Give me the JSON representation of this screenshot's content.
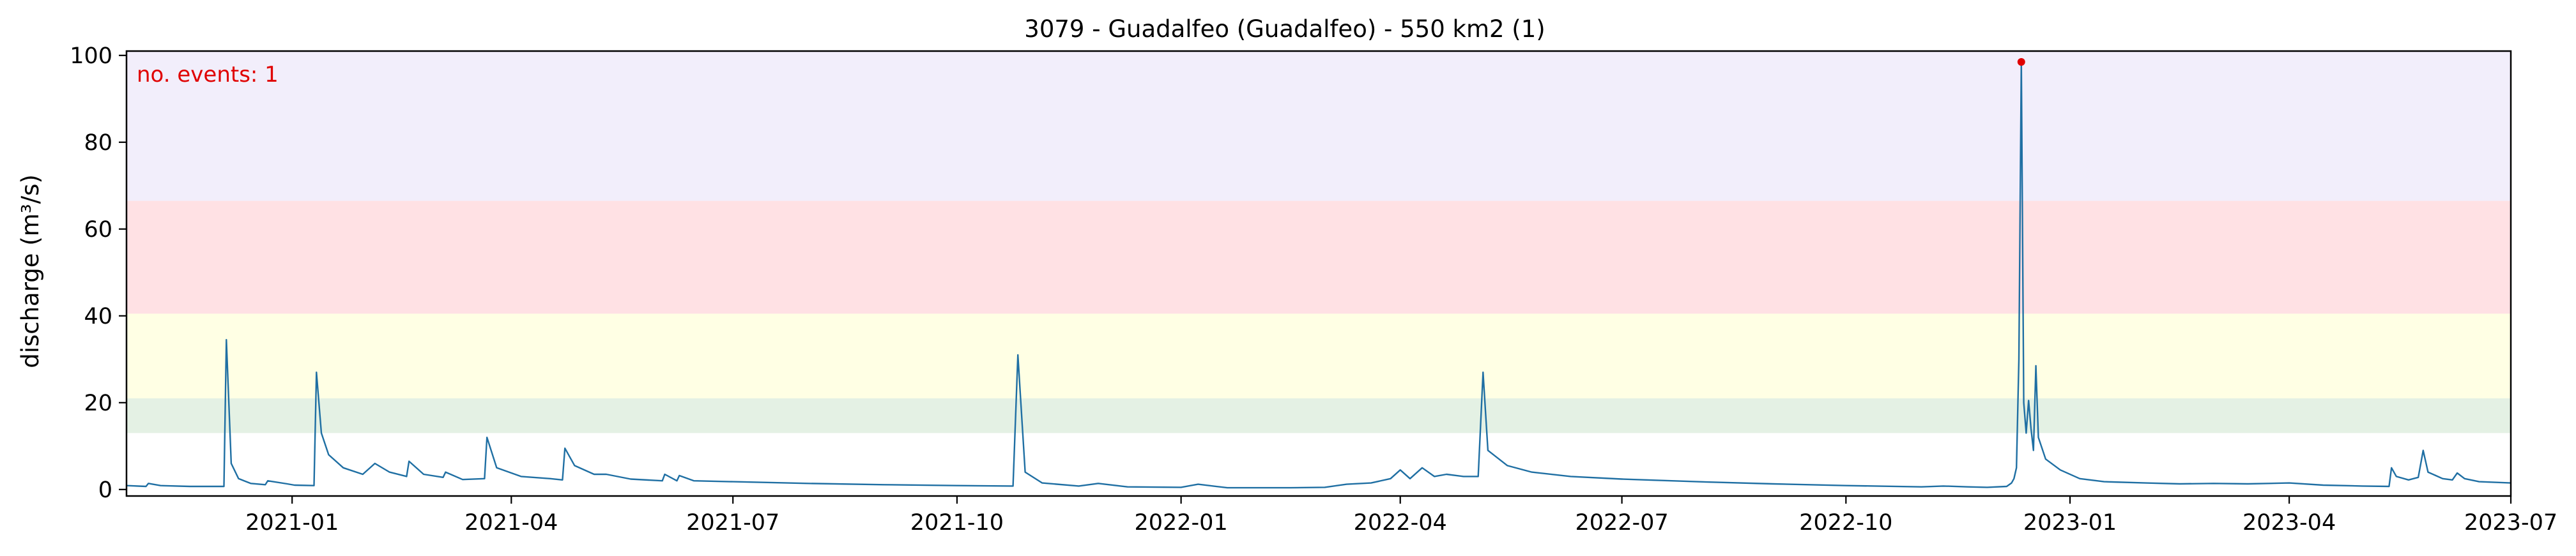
{
  "chart_data": {
    "type": "line",
    "title": "3079 - Guadalfeo (Guadalfeo) - 550 km2 (1)",
    "xlabel": "",
    "ylabel": "discharge (m³/s)",
    "xlim": [
      "2020-10-25",
      "2023-07-01"
    ],
    "ylim": [
      -1.5,
      101
    ],
    "x_ticks": [
      {
        "date": "2021-01-01",
        "label": "2021-01"
      },
      {
        "date": "2021-04-01",
        "label": "2021-04"
      },
      {
        "date": "2021-07-01",
        "label": "2021-07"
      },
      {
        "date": "2021-10-01",
        "label": "2021-10"
      },
      {
        "date": "2022-01-01",
        "label": "2022-01"
      },
      {
        "date": "2022-04-01",
        "label": "2022-04"
      },
      {
        "date": "2022-07-01",
        "label": "2022-07"
      },
      {
        "date": "2022-10-01",
        "label": "2022-10"
      },
      {
        "date": "2023-01-01",
        "label": "2023-01"
      },
      {
        "date": "2023-04-01",
        "label": "2023-04"
      },
      {
        "date": "2023-07-01",
        "label": "2023-07"
      }
    ],
    "y_ticks": [
      0,
      20,
      40,
      60,
      80,
      100
    ],
    "grid": false,
    "threshold_bands": [
      {
        "from": 13,
        "to": 21,
        "color": "#e4f1e4"
      },
      {
        "from": 21,
        "to": 40.5,
        "color": "#ffffe4"
      },
      {
        "from": 40.5,
        "to": 66.5,
        "color": "#ffe1e4"
      },
      {
        "from": 66.5,
        "to": 101,
        "color": "#f2eefb"
      }
    ],
    "annotation": {
      "text": "no. events: 1",
      "color": "#e00000"
    },
    "event_marker": {
      "x": "2022-12-12",
      "y": 98.5,
      "color": "#e00000"
    },
    "series": [
      {
        "color": "#1f6fa3",
        "points": [
          [
            "2020-10-25",
            0.9
          ],
          [
            "2020-11-02",
            0.7
          ],
          [
            "2020-11-03",
            1.4
          ],
          [
            "2020-11-08",
            0.9
          ],
          [
            "2020-11-20",
            0.7
          ],
          [
            "2020-12-04",
            0.7
          ],
          [
            "2020-12-05",
            34.5
          ],
          [
            "2020-12-07",
            6
          ],
          [
            "2020-12-10",
            2.5
          ],
          [
            "2020-12-15",
            1.4
          ],
          [
            "2020-12-21",
            1.1
          ],
          [
            "2020-12-22",
            2.0
          ],
          [
            "2020-12-30",
            1.3
          ],
          [
            "2021-01-02",
            1.0
          ],
          [
            "2021-01-10",
            0.9
          ],
          [
            "2021-01-11",
            27
          ],
          [
            "2021-01-13",
            13
          ],
          [
            "2021-01-16",
            8
          ],
          [
            "2021-01-22",
            5
          ],
          [
            "2021-01-30",
            3.5
          ],
          [
            "2021-02-04",
            6
          ],
          [
            "2021-02-10",
            4
          ],
          [
            "2021-02-17",
            3
          ],
          [
            "2021-02-18",
            6.5
          ],
          [
            "2021-02-24",
            3.5
          ],
          [
            "2021-03-04",
            2.8
          ],
          [
            "2021-03-05",
            4
          ],
          [
            "2021-03-12",
            2.3
          ],
          [
            "2021-03-21",
            2.5
          ],
          [
            "2021-03-22",
            12
          ],
          [
            "2021-03-26",
            5
          ],
          [
            "2021-04-05",
            3
          ],
          [
            "2021-04-17",
            2.5
          ],
          [
            "2021-04-22",
            2.2
          ],
          [
            "2021-04-23",
            9.5
          ],
          [
            "2021-04-27",
            5.5
          ],
          [
            "2021-05-05",
            3.5
          ],
          [
            "2021-05-10",
            3.5
          ],
          [
            "2021-05-20",
            2.4
          ],
          [
            "2021-06-02",
            2.0
          ],
          [
            "2021-06-03",
            3.5
          ],
          [
            "2021-06-08",
            2.0
          ],
          [
            "2021-06-09",
            3.2
          ],
          [
            "2021-06-15",
            2.0
          ],
          [
            "2021-07-01",
            1.8
          ],
          [
            "2021-08-01",
            1.4
          ],
          [
            "2021-09-01",
            1.1
          ],
          [
            "2021-10-01",
            0.9
          ],
          [
            "2021-10-24",
            0.8
          ],
          [
            "2021-10-26",
            31
          ],
          [
            "2021-10-29",
            4
          ],
          [
            "2021-11-05",
            1.5
          ],
          [
            "2021-11-20",
            0.8
          ],
          [
            "2021-11-28",
            1.4
          ],
          [
            "2021-12-10",
            0.6
          ],
          [
            "2022-01-01",
            0.5
          ],
          [
            "2022-01-08",
            1.2
          ],
          [
            "2022-01-20",
            0.4
          ],
          [
            "2022-02-15",
            0.4
          ],
          [
            "2022-03-01",
            0.5
          ],
          [
            "2022-03-10",
            1.2
          ],
          [
            "2022-03-20",
            1.5
          ],
          [
            "2022-03-28",
            2.5
          ],
          [
            "2022-04-01",
            4.5
          ],
          [
            "2022-04-05",
            2.5
          ],
          [
            "2022-04-10",
            5
          ],
          [
            "2022-04-15",
            3
          ],
          [
            "2022-04-20",
            3.5
          ],
          [
            "2022-04-27",
            3
          ],
          [
            "2022-05-03",
            3
          ],
          [
            "2022-05-05",
            27
          ],
          [
            "2022-05-07",
            9
          ],
          [
            "2022-05-15",
            5.5
          ],
          [
            "2022-05-25",
            4
          ],
          [
            "2022-06-10",
            3
          ],
          [
            "2022-07-01",
            2.4
          ],
          [
            "2022-08-01",
            1.8
          ],
          [
            "2022-09-01",
            1.3
          ],
          [
            "2022-10-01",
            0.9
          ],
          [
            "2022-11-01",
            0.6
          ],
          [
            "2022-11-10",
            0.8
          ],
          [
            "2022-11-20",
            0.6
          ],
          [
            "2022-11-28",
            0.5
          ],
          [
            "2022-12-06",
            0.7
          ],
          [
            "2022-12-08",
            1.5
          ],
          [
            "2022-12-09",
            2.5
          ],
          [
            "2022-12-10",
            5
          ],
          [
            "2022-12-11",
            30
          ],
          [
            "2022-12-12",
            98.5
          ],
          [
            "2022-12-13",
            20
          ],
          [
            "2022-12-14",
            13
          ],
          [
            "2022-12-15",
            20.5
          ],
          [
            "2022-12-16",
            14
          ],
          [
            "2022-12-17",
            9
          ],
          [
            "2022-12-18",
            28.5
          ],
          [
            "2022-12-19",
            12
          ],
          [
            "2022-12-22",
            7
          ],
          [
            "2022-12-28",
            4.5
          ],
          [
            "2023-01-05",
            2.5
          ],
          [
            "2023-01-15",
            1.8
          ],
          [
            "2023-02-01",
            1.5
          ],
          [
            "2023-02-15",
            1.3
          ],
          [
            "2023-03-01",
            1.4
          ],
          [
            "2023-03-15",
            1.3
          ],
          [
            "2023-04-01",
            1.5
          ],
          [
            "2023-04-15",
            1.0
          ],
          [
            "2023-05-01",
            0.8
          ],
          [
            "2023-05-12",
            0.7
          ],
          [
            "2023-05-13",
            5
          ],
          [
            "2023-05-15",
            3
          ],
          [
            "2023-05-20",
            2.2
          ],
          [
            "2023-05-24",
            2.8
          ],
          [
            "2023-05-26",
            9
          ],
          [
            "2023-05-28",
            4
          ],
          [
            "2023-06-03",
            2.5
          ],
          [
            "2023-06-07",
            2.2
          ],
          [
            "2023-06-09",
            3.8
          ],
          [
            "2023-06-12",
            2.5
          ],
          [
            "2023-06-18",
            1.8
          ],
          [
            "2023-07-01",
            1.5
          ]
        ]
      }
    ]
  }
}
